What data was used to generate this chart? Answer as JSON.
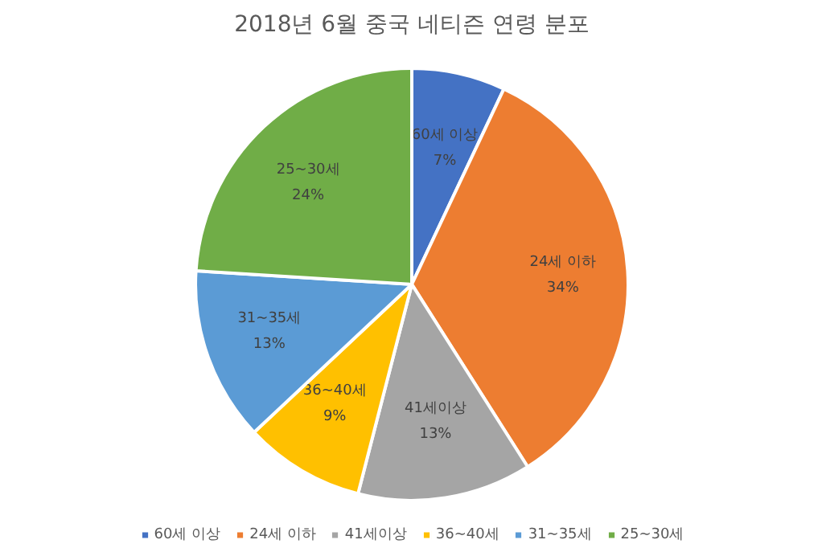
{
  "chart_data": {
    "type": "pie",
    "title": "2018년 6월 중국 네티즌 연령 분포",
    "categories": [
      "60세 이상",
      "24세 이하",
      "41세이상",
      "36~40세",
      "31~35세",
      "25~30세"
    ],
    "values": [
      7,
      34,
      13,
      9,
      13,
      24
    ],
    "colors": [
      "#4472c4",
      "#ed7d31",
      "#a5a5a5",
      "#ffc000",
      "#5b9bd5",
      "#70ad47"
    ],
    "value_labels": [
      "7%",
      "34%",
      "13%",
      "9%",
      "13%",
      "24%"
    ],
    "legend": "bottom"
  }
}
